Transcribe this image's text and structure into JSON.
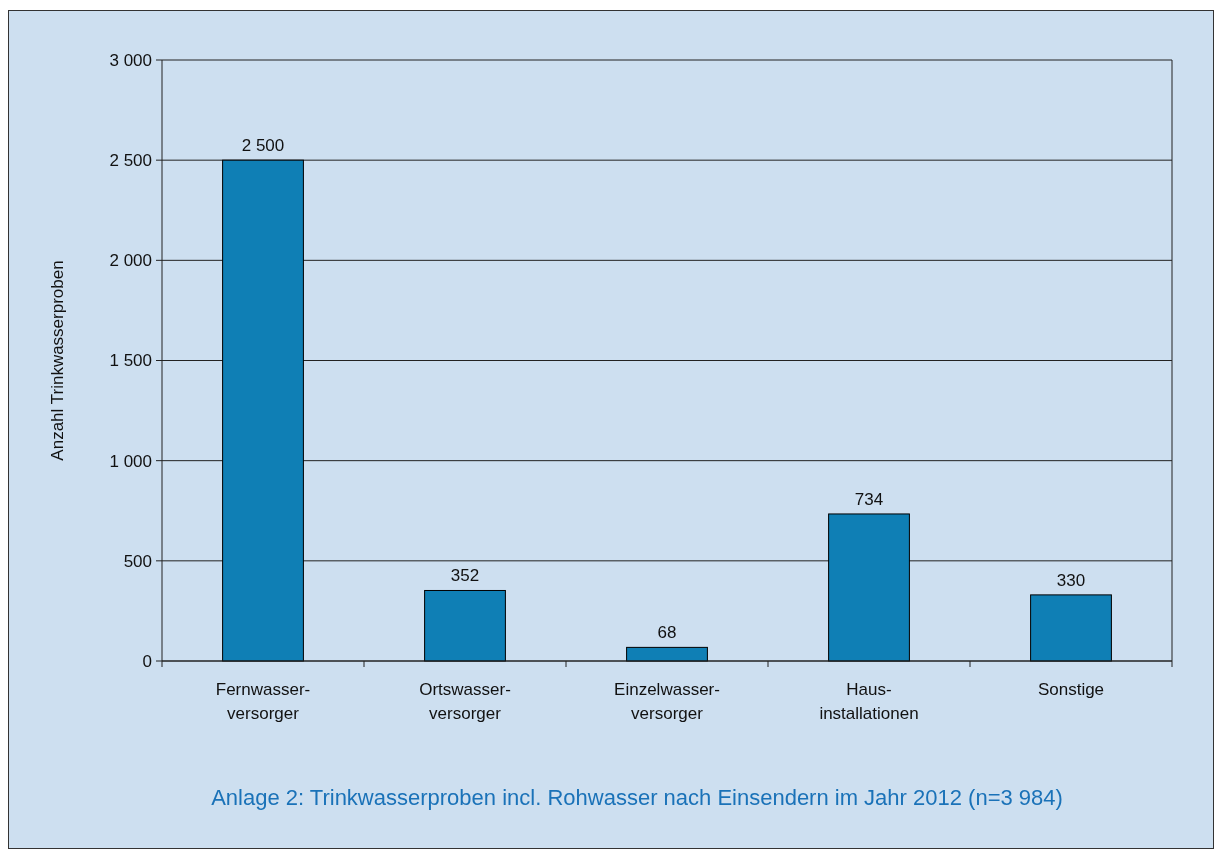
{
  "chart_data": {
    "type": "bar",
    "ylabel": "Anzahl Trinkwasserproben",
    "categories": [
      "Fernwasser-\nversorger",
      "Ortswasser-\nversorger",
      "Einzelwasser-\nversorger",
      "Haus-\ninstallationen",
      "Sonstige"
    ],
    "values": [
      2500,
      352,
      68,
      734,
      330
    ],
    "value_labels": [
      "2 500",
      "352",
      "68",
      "734",
      "330"
    ],
    "color": "#0f7fb5",
    "ylim": [
      0,
      3000
    ],
    "yticks": [
      {
        "value": 0,
        "label": "0"
      },
      {
        "value": 500,
        "label": "500"
      },
      {
        "value": 1000,
        "label": "1 000"
      },
      {
        "value": 1500,
        "label": "1 500"
      },
      {
        "value": 2000,
        "label": "2 000"
      },
      {
        "value": 2500,
        "label": "2 500"
      },
      {
        "value": 3000,
        "label": "3 000"
      }
    ],
    "grid": "y",
    "annotations": [
      "Anlage 2: Trinkwasserproben incl. Rohwasser nach Einsendern im Jahr 2012 (n=3 984)"
    ]
  }
}
